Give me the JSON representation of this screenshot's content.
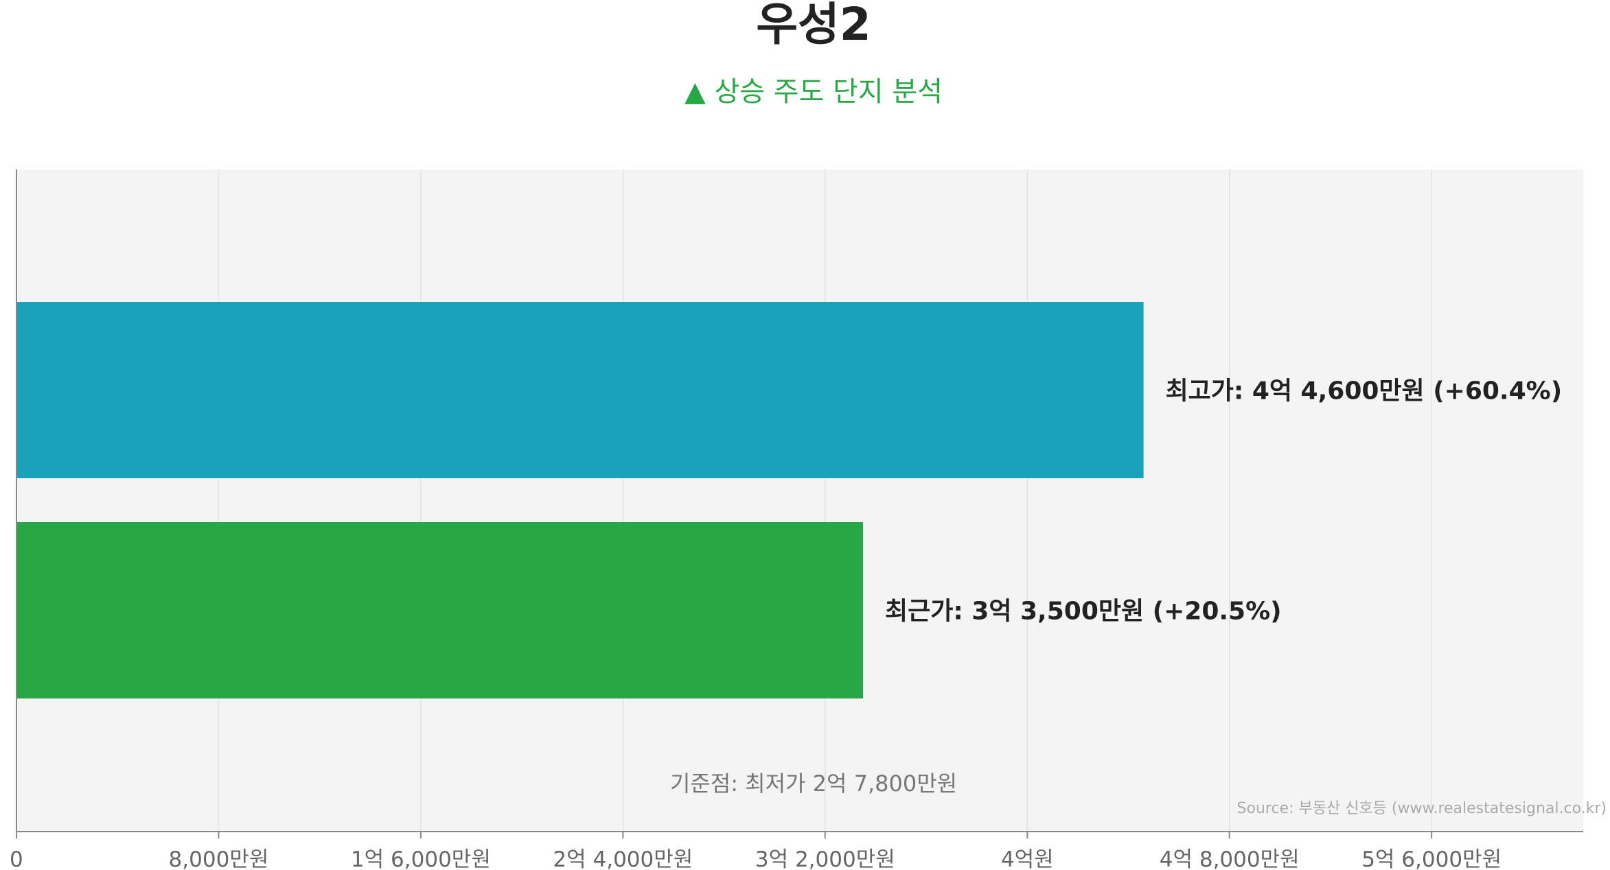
{
  "chart_data": {
    "type": "bar",
    "orientation": "horizontal",
    "title": "우성2",
    "subtitle": "▲ 상승 주도 단지 분석",
    "unit": "만원",
    "xlim": [
      0,
      62000
    ],
    "x_ticks": [
      {
        "value": 0,
        "label": "0"
      },
      {
        "value": 8000,
        "label": "8,000만원"
      },
      {
        "value": 16000,
        "label": "1억 6,000만원"
      },
      {
        "value": 24000,
        "label": "2억 4,000만원"
      },
      {
        "value": 32000,
        "label": "3억 2,000만원"
      },
      {
        "value": 40000,
        "label": "4억원"
      },
      {
        "value": 48000,
        "label": "4억 8,000만원"
      },
      {
        "value": 56000,
        "label": "5억 6,000만원"
      }
    ],
    "grid": true,
    "categories": [
      "최고가",
      "최근가"
    ],
    "values": [
      44600,
      33500
    ],
    "bar_labels": [
      "최고가: 4억 4,600만원 (+60.4%)",
      "최근가: 3억 3,500만원 (+20.5%)"
    ],
    "colors": [
      "#19a2b8",
      "#28a745"
    ],
    "baseline_note": "기준점: 최저가 2억 7,800만원",
    "source": "Source: 부동산 신호등 (www.realestatesignal.co.kr)"
  },
  "style": {
    "plot_background": "#f4f4f4",
    "grid_color": "#e2e2e2",
    "axis_color": "#888888",
    "subtitle_color": "#28a745"
  }
}
